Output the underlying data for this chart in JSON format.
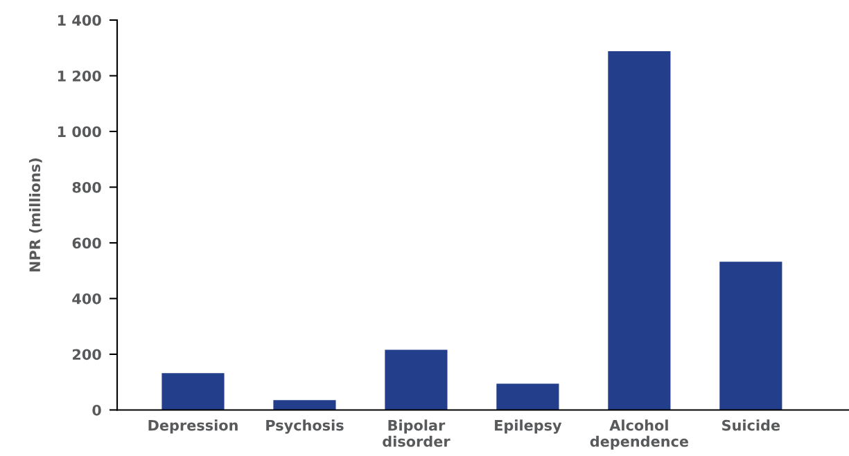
{
  "chart_data": {
    "type": "bar",
    "ylabel": "NPR (millions)",
    "categories": [
      "Depression",
      "Psychosis",
      "Bipolar disorder",
      "Epilepsy",
      "Alcohol dependence",
      "Suicide"
    ],
    "values": [
      132,
      35,
      216,
      94,
      1288,
      532
    ],
    "color": "#233e8b",
    "ylim": [
      0,
      1400
    ],
    "yticks": [
      0,
      {
        "value": 200,
        "label": "200"
      },
      {
        "value": 400,
        "label": "400"
      },
      {
        "value": 600,
        "label": "600"
      },
      {
        "value": 800,
        "label": "800"
      },
      {
        "value": 1000,
        "label": "1 000"
      },
      {
        "value": 1200,
        "label": "1 200"
      },
      {
        "value": 1400,
        "label": "1 400"
      }
    ],
    "grid": false,
    "legend": false
  }
}
